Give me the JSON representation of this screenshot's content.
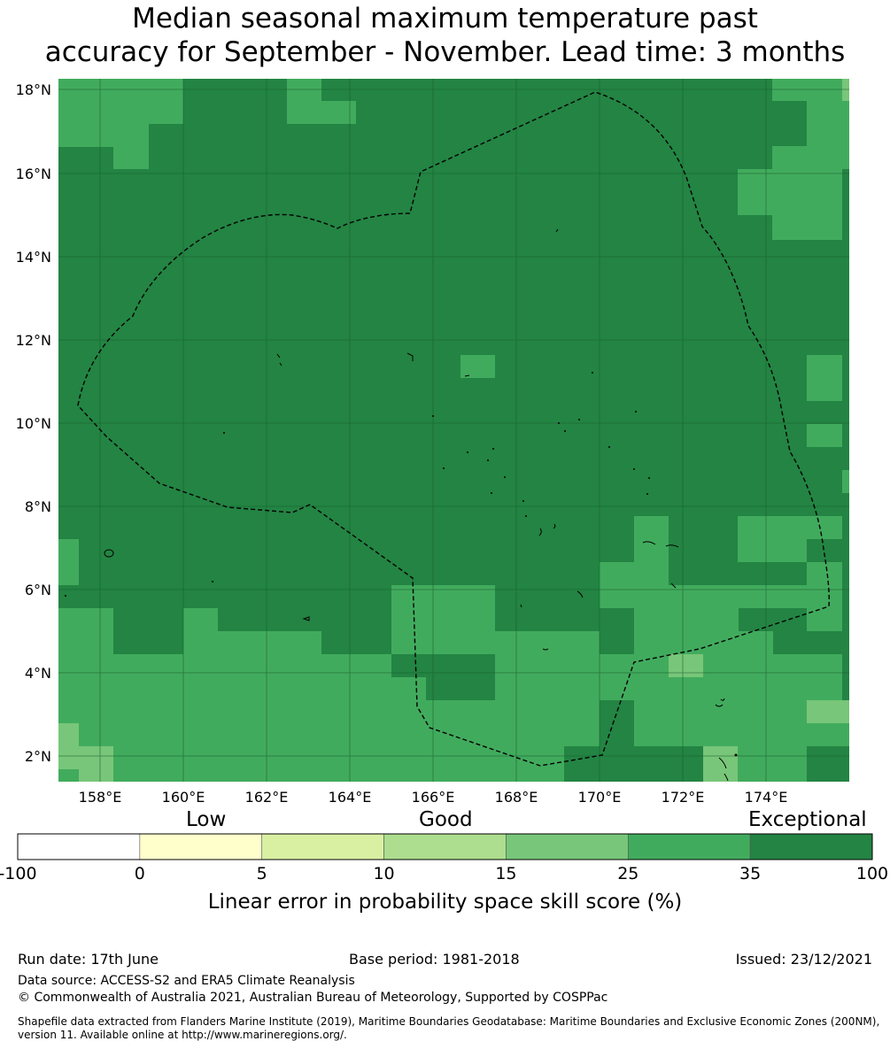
{
  "title": {
    "line1": "Median seasonal maximum temperature past",
    "line2": "accuracy for September - November. Lead time: 3 months"
  },
  "map": {
    "lat_labels": [
      "18°N",
      "16°N",
      "14°N",
      "12°N",
      "10°N",
      "8°N",
      "6°N",
      "4°N",
      "2°N"
    ],
    "lon_labels": [
      "158°E",
      "160°E",
      "162°E",
      "164°E",
      "166°E",
      "168°E",
      "170°E",
      "172°E",
      "174°E"
    ],
    "background_class_color": "#238443",
    "boundary_style": "dashed black (EEZ)"
  },
  "colorbar": {
    "category_labels": [
      "Low",
      "Good",
      "Exceptional"
    ],
    "ticks": [
      "-100",
      "0",
      "5",
      "10",
      "15",
      "25",
      "35",
      "100"
    ],
    "colors": [
      "#ffffff",
      "#ffffcc",
      "#d9f0a3",
      "#addd8e",
      "#78c679",
      "#41ab5d",
      "#238443"
    ],
    "label": "Linear error in probability space skill score (%)"
  },
  "footer": {
    "run_date": "Run date: 17th June",
    "base_period": "Base period: 1981-2018",
    "issued": "Issued: 23/12/2021",
    "data_source": "Data source: ACCESS-S2 and ERA5 Climate Reanalysis",
    "copyright": "© Commonwealth of Australia 2021, Australian Bureau of Meteorology, Supported by COSPPac",
    "shapefile": "Shapefile data extracted from Flanders Marine Institute (2019), Maritime Boundaries Geodatabase: Maritime Boundaries and Exclusive Economic Zones (200NM), version 11. Available online at http://www.marineregions.org/."
  }
}
